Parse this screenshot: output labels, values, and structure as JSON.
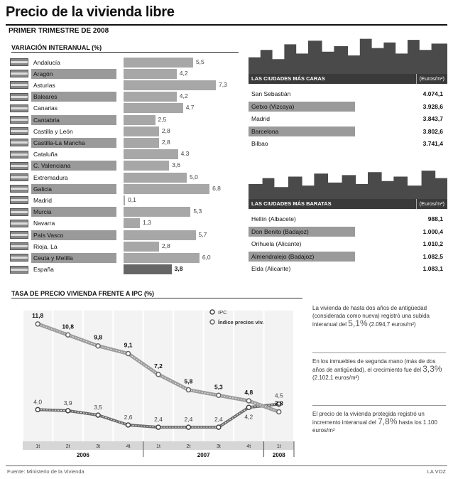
{
  "title": "Precio de la vivienda libre",
  "subtitle": "PRIMER TRIMESTRE DE 2008",
  "variacion": {
    "heading": "VARIACIÓN INTERANUAL (%)",
    "rows": [
      {
        "region": "Andalucía",
        "value": "5,5"
      },
      {
        "region": "Aragón",
        "value": "4,2"
      },
      {
        "region": "Asturias",
        "value": "7,3"
      },
      {
        "region": "Baleares",
        "value": "4,2"
      },
      {
        "region": "Canarias",
        "value": "4,7"
      },
      {
        "region": "Cantabria",
        "value": "2,5"
      },
      {
        "region": "Castilla y León",
        "value": "2,8"
      },
      {
        "region": "Castilla-La Mancha",
        "value": "2,8"
      },
      {
        "region": "Cataluña",
        "value": "4,3"
      },
      {
        "region": "C. Valenciana",
        "value": "3,6"
      },
      {
        "region": "Extremadura",
        "value": "5,0"
      },
      {
        "region": "Galicia",
        "value": "6,8"
      },
      {
        "region": "Madrid",
        "value": "0,1"
      },
      {
        "region": "Murcia",
        "value": "5,3"
      },
      {
        "region": "Navarra",
        "value": "1,3"
      },
      {
        "region": "País Vasco",
        "value": "5,7"
      },
      {
        "region": "Rioja, La",
        "value": "2,8"
      },
      {
        "region": "Ceuta y Melilla",
        "value": "6,0"
      },
      {
        "region": "España",
        "value": "3,8"
      }
    ]
  },
  "caras": {
    "heading": "LAS CIUDADES MÁS CARAS",
    "unit": "(Euros/m²)",
    "rows": [
      {
        "city": "San Sebastián",
        "value": "4.074,1"
      },
      {
        "city": "Getxo (Vizcaya)",
        "value": "3.928,6"
      },
      {
        "city": "Madrid",
        "value": "3.843,7"
      },
      {
        "city": "Barcelona",
        "value": "3.802,6"
      },
      {
        "city": "Bilbao",
        "value": "3.741,4"
      }
    ]
  },
  "baratas": {
    "heading": "LAS CIUDADES MÁS BARATAS",
    "unit": "(Euros/m²)",
    "rows": [
      {
        "city": "Hellín (Albacete)",
        "value": "988,1"
      },
      {
        "city": "Don Benito (Badajoz)",
        "value": "1.000,4"
      },
      {
        "city": "Orihuela (Alicante)",
        "value": "1.010,2"
      },
      {
        "city": "Almendralejo (Badajoz)",
        "value": "1.082,5"
      },
      {
        "city": "Elda (Alicante)",
        "value": "1.083,1"
      }
    ]
  },
  "ipc": {
    "heading": "TASA DE PRECIO VIVIENDA FRENTE A IPC (%)",
    "legend_ipc": "IPC",
    "legend_ipv": "Índice precios viv."
  },
  "chart_data": [
    {
      "type": "bar",
      "title": "VARIACIÓN INTERANUAL (%)",
      "categories": [
        "Andalucía",
        "Aragón",
        "Asturias",
        "Baleares",
        "Canarias",
        "Cantabria",
        "Castilla y León",
        "Castilla-La Mancha",
        "Cataluña",
        "C. Valenciana",
        "Extremadura",
        "Galicia",
        "Madrid",
        "Murcia",
        "Navarra",
        "País Vasco",
        "Rioja, La",
        "Ceuta y Melilla",
        "España"
      ],
      "values": [
        5.5,
        4.2,
        7.3,
        4.2,
        4.7,
        2.5,
        2.8,
        2.8,
        4.3,
        3.6,
        5.0,
        6.8,
        0.1,
        5.3,
        1.3,
        5.7,
        2.8,
        6.0,
        3.8
      ],
      "ylim": [
        0,
        7.3
      ]
    },
    {
      "type": "line",
      "title": "TASA DE PRECIO VIVIENDA FRENTE A IPC (%)",
      "categories": [
        "1t",
        "2t",
        "3t",
        "4t",
        "1t",
        "2t",
        "3t",
        "4t",
        "1t"
      ],
      "year_groups": [
        {
          "year": "2006",
          "span": 4
        },
        {
          "year": "2007",
          "span": 4
        },
        {
          "year": "2008",
          "span": 1
        }
      ],
      "series": [
        {
          "name": "IPC",
          "values": [
            4.0,
            3.9,
            3.5,
            2.6,
            2.4,
            2.4,
            2.4,
            4.2,
            4.5
          ],
          "labels": [
            "4,0",
            "3,9",
            "3,5",
            "2,6",
            "2,4",
            "2,4",
            "2,4",
            "4,2",
            "4,5"
          ]
        },
        {
          "name": "Índice precios viv.",
          "values": [
            11.8,
            10.8,
            9.8,
            9.1,
            7.2,
            5.8,
            5.3,
            4.8,
            3.8
          ],
          "labels": [
            "11,8",
            "10,8",
            "9,8",
            "9,1",
            "7,2",
            "5,8",
            "5,3",
            "4,8",
            "3,8"
          ]
        }
      ],
      "ylim": [
        1.5,
        12.5
      ]
    }
  ],
  "notes": [
    {
      "pre": "La vivienda de hasta dos años de antigüedad (considerada como nueva) registró una subida interanual del",
      "big": "5,1%",
      "post": "(2.094,7 euros/m²)"
    },
    {
      "pre": "En los inmuebles de segunda mano (más de dos años de antigüedad), el crecimiento fue del",
      "big": "3,3%",
      "post": "(2.102,1 euros/m²)"
    },
    {
      "pre": "El precio de la vivienda protegida registró un incremento interanual del",
      "big": "7,8%",
      "post": "hasta los 1.100 euros/m²"
    }
  ],
  "footer": {
    "source": "Fuente: Ministerio de la Vivienda",
    "credit": "LA VOZ"
  }
}
